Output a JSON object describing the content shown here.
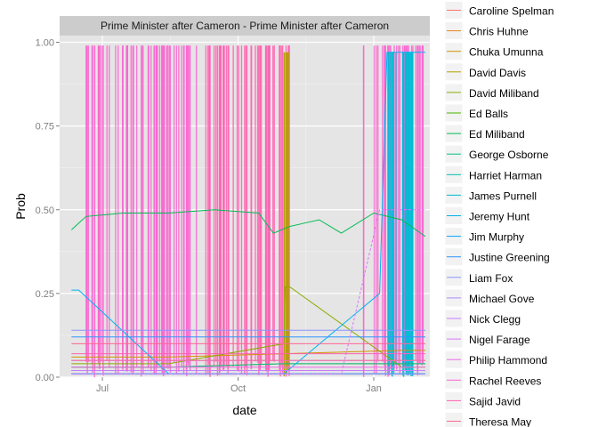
{
  "chart_data": {
    "type": "line",
    "title": "",
    "facet_title": "Prime Minister after Cameron - Prime Minister after Cameron",
    "xlabel": "date",
    "ylabel": "Prob",
    "ylim": [
      0,
      1.02
    ],
    "y_ticks": [
      0.0,
      0.25,
      0.5,
      0.75,
      1.0
    ],
    "y_tick_labels": [
      "0.00",
      "0.25",
      "0.50",
      "0.75",
      "1.00"
    ],
    "xlim": [
      "2012-06-02",
      "2013-02-08"
    ],
    "x_ticks": [
      "2012-07-01",
      "2012-10-01",
      "2013-01-01"
    ],
    "x_tick_labels": [
      "Jul",
      "Oct",
      "Jan"
    ],
    "grid": true,
    "legend_position": "right",
    "series": [
      {
        "name": "Caroline Spelman",
        "color": "#F8766D",
        "points": [
          [
            "2012-06-10",
            0.02
          ],
          [
            "2012-08-15",
            0.02
          ],
          [
            "2012-11-01",
            0.02
          ],
          [
            "2013-01-20",
            0.02
          ],
          [
            "2013-02-05",
            0.02
          ]
        ]
      },
      {
        "name": "Chris Huhne",
        "color": "#E7851E",
        "points": [
          [
            "2012-06-10",
            0.03
          ],
          [
            "2012-08-15",
            0.03
          ],
          [
            "2012-11-01",
            0.04
          ],
          [
            "2013-01-20",
            0.04
          ],
          [
            "2013-02-05",
            0.04
          ]
        ]
      },
      {
        "name": "Chuka Umunna",
        "color": "#D09400",
        "points": [
          [
            "2012-06-10",
            0.06
          ],
          [
            "2012-08-15",
            0.06
          ],
          [
            "2012-11-01",
            0.07
          ],
          [
            "2013-01-20",
            0.08
          ],
          [
            "2013-02-05",
            0.08
          ]
        ]
      },
      {
        "name": "David Davis",
        "color": "#B2A100",
        "points": [
          [
            "2012-06-10",
            0.05
          ],
          [
            "2012-08-15",
            0.05
          ],
          [
            "2012-11-01",
            0.05
          ],
          [
            "2013-01-20",
            0.05
          ],
          [
            "2013-02-05",
            0.05
          ]
        ]
      },
      {
        "name": "David Miliband",
        "color": "#89AC00",
        "points": [
          [
            "2012-06-10",
            0.04
          ],
          [
            "2012-08-15",
            0.04
          ],
          [
            "2012-11-01",
            0.1
          ],
          [
            "2012-11-02",
            0.27
          ],
          [
            "2012-11-05",
            0.27
          ],
          [
            "2013-01-20",
            0.03
          ],
          [
            "2013-02-05",
            0.03
          ]
        ]
      },
      {
        "name": "Ed Balls",
        "color": "#45B500",
        "points": [
          [
            "2012-06-10",
            0.02
          ],
          [
            "2012-08-15",
            0.02
          ],
          [
            "2012-11-01",
            0.02
          ],
          [
            "2013-01-20",
            0.02
          ],
          [
            "2013-02-05",
            0.02
          ]
        ]
      },
      {
        "name": "Ed Miliband",
        "color": "#00BC51",
        "points": [
          [
            "2012-06-10",
            0.44
          ],
          [
            "2012-06-15",
            0.46
          ],
          [
            "2012-06-20",
            0.48
          ],
          [
            "2012-07-15",
            0.49
          ],
          [
            "2012-08-15",
            0.49
          ],
          [
            "2012-09-15",
            0.5
          ],
          [
            "2012-10-15",
            0.49
          ],
          [
            "2012-10-25",
            0.43
          ],
          [
            "2012-11-05",
            0.45
          ],
          [
            "2012-11-15",
            0.46
          ],
          [
            "2012-11-25",
            0.47
          ],
          [
            "2012-12-10",
            0.43
          ],
          [
            "2013-01-01",
            0.49
          ],
          [
            "2013-01-20",
            0.47
          ],
          [
            "2013-02-05",
            0.42
          ]
        ]
      },
      {
        "name": "George Osborne",
        "color": "#00C087",
        "points": [
          [
            "2012-06-10",
            0.03
          ],
          [
            "2012-08-15",
            0.03
          ],
          [
            "2012-11-01",
            0.04
          ],
          [
            "2013-01-20",
            0.04
          ],
          [
            "2013-02-05",
            0.04
          ]
        ]
      },
      {
        "name": "Harriet Harman",
        "color": "#00C0B2",
        "points": [
          [
            "2012-06-10",
            0.01
          ],
          [
            "2012-08-15",
            0.01
          ],
          [
            "2012-11-01",
            0.01
          ],
          [
            "2013-01-20",
            0.01
          ],
          [
            "2013-02-05",
            0.01
          ]
        ]
      },
      {
        "name": "James Purnell",
        "color": "#00BCD6",
        "points": [
          [
            "2012-06-10",
            0.01
          ],
          [
            "2012-08-15",
            0.01
          ],
          [
            "2012-11-01",
            0.01
          ],
          [
            "2013-01-20",
            0.01
          ],
          [
            "2013-02-05",
            0.01
          ]
        ]
      },
      {
        "name": "Jeremy Hunt",
        "color": "#00B3F2",
        "points": [
          [
            "2012-06-10",
            0.26
          ],
          [
            "2012-06-15",
            0.26
          ],
          [
            "2012-08-15",
            0.01
          ],
          [
            "2012-11-01",
            0.01
          ],
          [
            "2013-01-05",
            0.25
          ],
          [
            "2013-01-10",
            0.97
          ],
          [
            "2013-01-20",
            0.97
          ],
          [
            "2013-02-05",
            0.97
          ]
        ]
      },
      {
        "name": "Jim Murphy",
        "color": "#00A6FF",
        "points": [
          [
            "2012-06-10",
            0.01
          ],
          [
            "2012-08-15",
            0.01
          ],
          [
            "2012-11-01",
            0.01
          ],
          [
            "2013-01-20",
            0.01
          ],
          [
            "2013-02-05",
            0.01
          ]
        ]
      },
      {
        "name": "Justine Greening",
        "color": "#2F96FF",
        "points": [
          [
            "2012-06-10",
            0.12
          ],
          [
            "2012-08-15",
            0.12
          ],
          [
            "2012-11-01",
            0.12
          ],
          [
            "2013-01-20",
            0.12
          ],
          [
            "2013-02-05",
            0.12
          ]
        ]
      },
      {
        "name": "Liam Fox",
        "color": "#8B93FF",
        "points": [
          [
            "2012-06-10",
            0.14
          ],
          [
            "2012-07-15",
            0.14
          ],
          [
            "2012-09-01",
            0.14
          ],
          [
            "2012-11-01",
            0.14
          ],
          [
            "2013-01-20",
            0.14
          ],
          [
            "2013-02-05",
            0.14
          ]
        ]
      },
      {
        "name": "Michael Gove",
        "color": "#A58AFF",
        "points": [
          [
            "2012-06-10",
            0.01
          ],
          [
            "2012-08-15",
            0.01
          ],
          [
            "2012-11-01",
            0.01
          ],
          [
            "2013-01-20",
            0.01
          ],
          [
            "2013-02-05",
            0.01
          ]
        ]
      },
      {
        "name": "Nick Clegg",
        "color": "#C77CFF",
        "points": [
          [
            "2012-06-10",
            0.02
          ],
          [
            "2012-08-15",
            0.02
          ],
          [
            "2012-11-01",
            0.02
          ],
          [
            "2013-01-20",
            0.02
          ],
          [
            "2013-02-05",
            0.02
          ]
        ]
      },
      {
        "name": "Nigel Farage",
        "color": "#DE74FD",
        "points": [
          [
            "2012-06-10",
            0.01
          ],
          [
            "2012-08-15",
            0.01
          ],
          [
            "2012-11-01",
            0.01
          ],
          [
            "2012-12-10",
            0.01
          ],
          [
            "2013-01-05",
            0.5
          ],
          [
            "2013-01-20",
            0.5
          ],
          [
            "2013-02-05",
            0.5
          ]
        ]
      },
      {
        "name": "Philip Hammond",
        "color": "#EE6DE9",
        "points": [
          [
            "2012-06-10",
            0.03
          ],
          [
            "2012-08-15",
            0.03
          ],
          [
            "2012-11-01",
            0.03
          ],
          [
            "2013-01-20",
            0.03
          ],
          [
            "2013-02-05",
            0.03
          ]
        ]
      },
      {
        "name": "Rachel Reeves",
        "color": "#F966D0",
        "points": [
          [
            "2012-06-10",
            0.05
          ],
          [
            "2012-08-15",
            0.05
          ],
          [
            "2012-11-01",
            0.05
          ],
          [
            "2013-01-20",
            0.05
          ],
          [
            "2013-02-05",
            0.05
          ]
        ]
      },
      {
        "name": "Sajid Javid",
        "color": "#FF62B2",
        "points": [
          [
            "2012-06-10",
            0.07
          ],
          [
            "2012-08-15",
            0.07
          ],
          [
            "2012-11-01",
            0.07
          ],
          [
            "2013-01-20",
            0.07
          ],
          [
            "2013-02-05",
            0.07
          ]
        ]
      },
      {
        "name": "Theresa May",
        "color": "#FF6693",
        "points": [
          [
            "2012-06-10",
            0.1
          ],
          [
            "2012-08-15",
            0.1
          ],
          [
            "2012-11-01",
            0.1
          ],
          [
            "2013-01-20",
            0.1
          ],
          [
            "2013-02-05",
            0.1
          ]
        ]
      }
    ]
  }
}
